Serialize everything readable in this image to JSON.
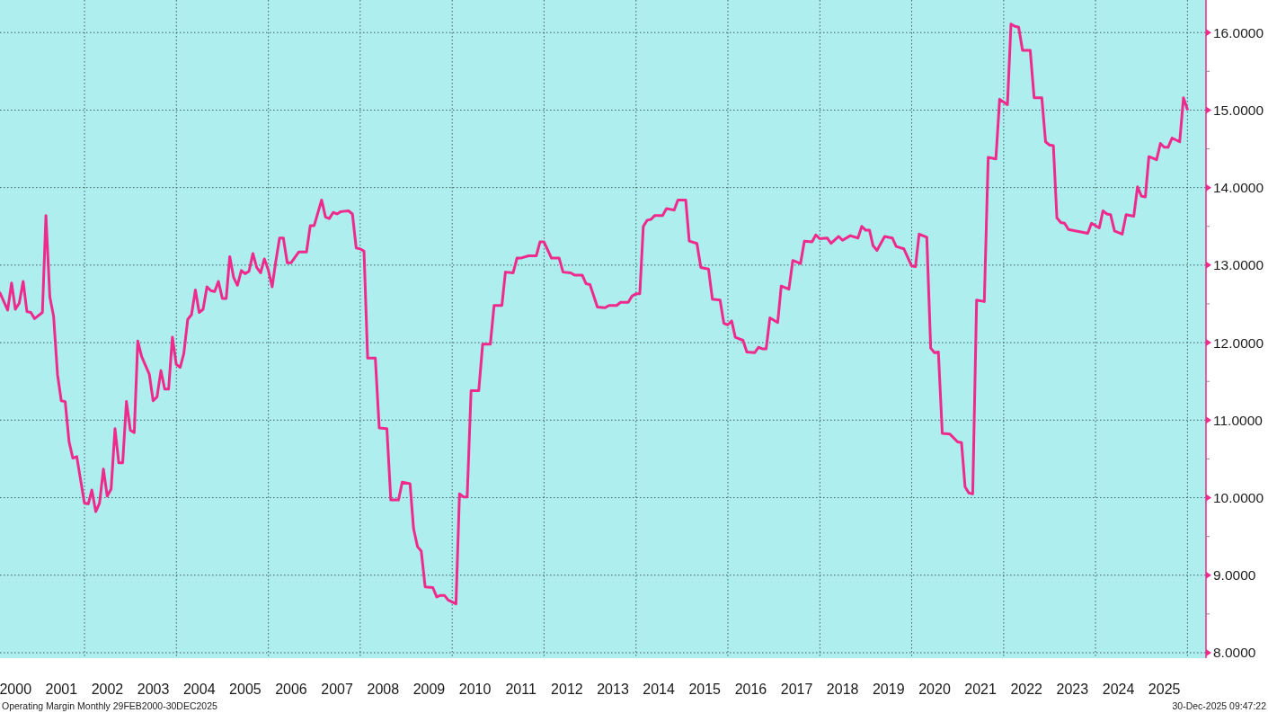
{
  "chart_data": {
    "type": "line",
    "color": "#ee2a8c",
    "x": [
      "2000-02-29",
      "2000-04-30",
      "2000-05-31",
      "2000-06-30",
      "2000-07-31",
      "2000-08-31",
      "2000-09-30",
      "2000-10-31",
      "2000-11-30",
      "2001-01-31",
      "2001-02-28",
      "2001-03-31",
      "2001-04-30",
      "2001-05-31",
      "2001-06-30",
      "2001-07-31",
      "2001-08-31",
      "2001-09-30",
      "2001-10-31",
      "2001-12-31",
      "2002-01-31",
      "2002-02-28",
      "2002-03-31",
      "2002-04-30",
      "2002-05-31",
      "2002-06-30",
      "2002-07-31",
      "2002-08-31",
      "2002-09-30",
      "2002-10-31",
      "2002-11-30",
      "2002-12-31",
      "2003-01-31",
      "2003-02-28",
      "2003-03-31",
      "2003-05-31",
      "2003-06-30",
      "2003-07-31",
      "2003-08-31",
      "2003-09-30",
      "2003-10-31",
      "2003-11-30",
      "2003-12-31",
      "2004-01-31",
      "2004-02-29",
      "2004-03-31",
      "2004-04-30",
      "2004-05-31",
      "2004-06-30",
      "2004-07-31",
      "2004-08-31",
      "2004-09-30",
      "2004-10-31",
      "2004-11-30",
      "2004-12-31",
      "2005-01-31",
      "2005-02-28",
      "2005-03-31",
      "2005-04-30",
      "2005-05-31",
      "2005-06-30",
      "2005-07-31",
      "2005-08-31",
      "2005-09-30",
      "2005-10-31",
      "2005-11-30",
      "2005-12-31",
      "2006-01-31",
      "2006-02-28",
      "2006-03-31",
      "2006-04-30",
      "2006-05-31",
      "2006-06-30",
      "2006-08-31",
      "2006-10-31",
      "2006-11-30",
      "2006-12-31",
      "2007-02-28",
      "2007-03-31",
      "2007-04-30",
      "2007-05-31",
      "2007-06-30",
      "2007-07-31",
      "2007-09-30",
      "2007-10-31",
      "2007-11-30",
      "2007-12-31",
      "2008-01-31",
      "2008-02-29",
      "2008-04-30",
      "2008-05-31",
      "2008-07-31",
      "2008-08-31",
      "2008-10-31",
      "2008-11-30",
      "2009-01-31",
      "2009-02-28",
      "2009-03-31",
      "2009-04-30",
      "2009-05-31",
      "2009-07-31",
      "2009-08-31",
      "2009-09-30",
      "2009-10-31",
      "2009-11-30",
      "2010-01-31",
      "2010-02-28",
      "2010-03-31",
      "2010-04-30",
      "2010-05-31",
      "2010-07-31",
      "2010-08-31",
      "2010-10-31",
      "2010-11-30",
      "2011-01-31",
      "2011-02-28",
      "2011-04-30",
      "2011-05-31",
      "2011-06-30",
      "2011-08-31",
      "2011-10-31",
      "2011-11-30",
      "2011-12-31",
      "2012-02-29",
      "2012-04-30",
      "2012-05-31",
      "2012-07-31",
      "2012-08-31",
      "2012-10-31",
      "2012-11-30",
      "2012-12-31",
      "2013-02-28",
      "2013-04-30",
      "2013-05-31",
      "2013-07-31",
      "2013-08-31",
      "2013-10-31",
      "2013-11-30",
      "2013-12-31",
      "2014-01-31",
      "2014-02-28",
      "2014-03-31",
      "2014-04-30",
      "2014-05-31",
      "2014-07-31",
      "2014-08-31",
      "2014-10-31",
      "2014-11-30",
      "2015-01-31",
      "2015-02-28",
      "2015-04-30",
      "2015-05-31",
      "2015-07-31",
      "2015-08-31",
      "2015-10-31",
      "2015-11-30",
      "2015-12-31",
      "2016-01-31",
      "2016-02-29",
      "2016-04-30",
      "2016-05-31",
      "2016-07-31",
      "2016-08-31",
      "2016-09-30",
      "2016-10-31",
      "2016-11-30",
      "2017-01-31",
      "2017-02-28",
      "2017-04-30",
      "2017-05-31",
      "2017-07-31",
      "2017-08-31",
      "2017-10-31",
      "2017-11-30",
      "2017-12-31",
      "2018-02-28",
      "2018-03-31",
      "2018-05-31",
      "2018-06-30",
      "2018-08-31",
      "2018-10-31",
      "2018-11-30",
      "2018-12-31",
      "2019-01-31",
      "2019-02-28",
      "2019-03-31",
      "2019-05-31",
      "2019-07-31",
      "2019-08-31",
      "2019-10-31",
      "2019-12-31",
      "2020-01-31",
      "2020-02-29",
      "2020-04-30",
      "2020-05-31",
      "2020-06-30",
      "2020-07-31",
      "2020-08-31",
      "2020-10-31",
      "2020-12-31",
      "2021-01-31",
      "2021-02-28",
      "2021-03-31",
      "2021-04-30",
      "2021-05-31",
      "2021-07-31",
      "2021-08-31",
      "2021-10-31",
      "2021-11-30",
      "2022-01-31",
      "2022-02-28",
      "2022-03-31",
      "2022-04-30",
      "2022-05-31",
      "2022-07-31",
      "2022-08-31",
      "2022-10-31",
      "2022-11-30",
      "2022-12-31",
      "2023-01-31",
      "2023-02-28",
      "2023-03-31",
      "2023-04-30",
      "2023-05-31",
      "2023-07-31",
      "2023-08-31",
      "2023-10-31",
      "2023-11-30",
      "2024-01-31",
      "2024-02-29",
      "2024-03-31",
      "2024-04-30",
      "2024-05-31",
      "2024-07-31",
      "2024-08-31",
      "2024-10-31",
      "2024-11-30",
      "2024-12-31",
      "2025-01-31",
      "2025-02-28",
      "2025-04-30",
      "2025-05-31",
      "2025-06-30",
      "2025-07-31",
      "2025-08-31",
      "2025-10-31",
      "2025-11-30",
      "2025-12-31"
    ],
    "values": [
      12.64,
      12.42,
      12.77,
      12.43,
      12.51,
      12.79,
      12.4,
      12.39,
      12.31,
      12.39,
      13.64,
      12.59,
      12.34,
      11.59,
      11.25,
      11.24,
      10.72,
      10.51,
      10.53,
      9.93,
      9.92,
      10.1,
      9.82,
      9.93,
      10.37,
      10.02,
      10.11,
      10.89,
      10.45,
      10.45,
      11.24,
      10.87,
      10.84,
      12.02,
      11.82,
      11.59,
      11.25,
      11.3,
      11.64,
      11.4,
      11.4,
      12.07,
      11.72,
      11.68,
      11.86,
      12.3,
      12.36,
      12.68,
      12.39,
      12.43,
      12.72,
      12.67,
      12.66,
      12.79,
      12.57,
      12.57,
      13.11,
      12.84,
      12.74,
      12.93,
      12.89,
      12.92,
      13.15,
      12.97,
      12.9,
      13.08,
      12.94,
      12.72,
      13.04,
      13.35,
      13.35,
      13.03,
      13.03,
      13.17,
      13.17,
      13.51,
      13.51,
      13.84,
      13.62,
      13.6,
      13.68,
      13.66,
      13.69,
      13.7,
      13.66,
      13.22,
      13.21,
      13.18,
      11.8,
      11.8,
      10.9,
      10.89,
      9.97,
      9.97,
      10.2,
      10.18,
      9.6,
      9.37,
      9.31,
      8.85,
      8.84,
      8.72,
      8.74,
      8.74,
      8.68,
      8.63,
      10.05,
      10.01,
      10.01,
      11.38,
      11.38,
      11.98,
      11.98,
      12.48,
      12.48,
      12.91,
      12.9,
      13.09,
      13.09,
      13.12,
      13.12,
      13.3,
      13.3,
      13.09,
      13.09,
      12.91,
      12.9,
      12.87,
      12.87,
      12.76,
      12.75,
      12.46,
      12.45,
      12.48,
      12.48,
      12.52,
      12.52,
      12.6,
      12.63,
      12.63,
      13.5,
      13.58,
      13.59,
      13.64,
      13.64,
      13.73,
      13.71,
      13.84,
      13.84,
      13.31,
      13.28,
      12.97,
      12.95,
      12.56,
      12.55,
      12.25,
      12.23,
      12.28,
      12.07,
      12.03,
      11.88,
      11.87,
      11.94,
      11.92,
      11.92,
      12.32,
      12.26,
      12.73,
      12.69,
      13.06,
      13.02,
      13.31,
      13.3,
      13.39,
      13.34,
      13.35,
      13.28,
      13.37,
      13.32,
      13.38,
      13.35,
      13.5,
      13.45,
      13.45,
      13.25,
      13.19,
      13.37,
      13.35,
      13.24,
      13.21,
      12.99,
      12.98,
      13.4,
      13.36,
      11.93,
      11.87,
      11.88,
      10.83,
      10.82,
      10.72,
      10.71,
      10.14,
      10.06,
      10.05,
      12.55,
      12.53,
      14.39,
      14.37,
      15.14,
      15.07,
      16.11,
      16.08,
      16.07,
      15.77,
      15.77,
      15.16,
      15.16,
      14.59,
      14.55,
      14.54,
      13.61,
      13.55,
      13.54,
      13.46,
      13.44,
      13.43,
      13.41,
      13.54,
      13.48,
      13.7,
      13.66,
      13.65,
      13.44,
      13.4,
      13.65,
      13.63,
      14.01,
      13.89,
      13.88,
      14.4,
      14.36,
      14.57,
      14.52,
      14.52,
      14.64,
      14.59,
      15.16,
      15.01
    ],
    "xlim": [
      "2000-02-29",
      "2026-05-28"
    ],
    "xticks": [
      {
        "value": "2000-07-01",
        "label": "2000"
      },
      {
        "value": "2001-07-01",
        "label": "2001"
      },
      {
        "value": "2002-07-01",
        "label": "2002"
      },
      {
        "value": "2003-07-01",
        "label": "2003"
      },
      {
        "value": "2004-07-01",
        "label": "2004"
      },
      {
        "value": "2005-07-01",
        "label": "2005"
      },
      {
        "value": "2006-07-01",
        "label": "2006"
      },
      {
        "value": "2007-07-01",
        "label": "2007"
      },
      {
        "value": "2008-07-01",
        "label": "2008"
      },
      {
        "value": "2009-07-01",
        "label": "2009"
      },
      {
        "value": "2010-07-01",
        "label": "2010"
      },
      {
        "value": "2011-07-01",
        "label": "2011"
      },
      {
        "value": "2012-07-01",
        "label": "2012"
      },
      {
        "value": "2013-07-01",
        "label": "2013"
      },
      {
        "value": "2014-07-01",
        "label": "2014"
      },
      {
        "value": "2015-07-01",
        "label": "2015"
      },
      {
        "value": "2016-07-01",
        "label": "2016"
      },
      {
        "value": "2017-07-01",
        "label": "2017"
      },
      {
        "value": "2018-07-01",
        "label": "2018"
      },
      {
        "value": "2019-07-01",
        "label": "2019"
      },
      {
        "value": "2020-07-01",
        "label": "2020"
      },
      {
        "value": "2021-07-01",
        "label": "2021"
      },
      {
        "value": "2022-07-01",
        "label": "2022"
      },
      {
        "value": "2023-07-01",
        "label": "2023"
      },
      {
        "value": "2024-07-01",
        "label": "2024"
      },
      {
        "value": "2025-07-01",
        "label": "2025"
      },
      {
        "value": "2002-01-01",
        "label": null
      },
      {
        "value": "2004-01-01",
        "label": null
      },
      {
        "value": "2006-01-01",
        "label": null
      },
      {
        "value": "2008-01-01",
        "label": null
      },
      {
        "value": "2010-01-01",
        "label": null
      },
      {
        "value": "2012-01-01",
        "label": null
      },
      {
        "value": "2014-01-01",
        "label": null
      },
      {
        "value": "2016-01-01",
        "label": null
      },
      {
        "value": "2018-01-01",
        "label": null
      },
      {
        "value": "2020-01-01",
        "label": null
      },
      {
        "value": "2022-01-01",
        "label": null
      },
      {
        "value": "2024-01-01",
        "label": null
      },
      {
        "value": "2026-01-01",
        "label": null
      }
    ],
    "ylim": [
      7.93,
      16.42
    ],
    "yticks": [
      {
        "value": 8,
        "label": "8.0000"
      },
      {
        "value": 9,
        "label": "9.0000"
      },
      {
        "value": 10,
        "label": "10.0000"
      },
      {
        "value": 11,
        "label": "11.0000"
      },
      {
        "value": 12,
        "label": "12.0000"
      },
      {
        "value": 13,
        "label": "13.0000"
      },
      {
        "value": 14,
        "label": "14.0000"
      },
      {
        "value": 15,
        "label": "15.0000"
      },
      {
        "value": 16,
        "label": "16.0000"
      },
      {
        "value": 8.5,
        "label": null
      },
      {
        "value": 9.5,
        "label": null
      },
      {
        "value": 10.5,
        "label": null
      },
      {
        "value": 11.5,
        "label": null
      },
      {
        "value": 12.5,
        "label": null
      },
      {
        "value": 13.5,
        "label": null
      },
      {
        "value": 14.5,
        "label": null
      },
      {
        "value": 15.5,
        "label": null
      }
    ],
    "grid": true,
    "annotations": [
      "Operating Margin Monthly 29FEB2000-30DEC2025",
      "30-Dec-2025 09:47:22"
    ]
  }
}
